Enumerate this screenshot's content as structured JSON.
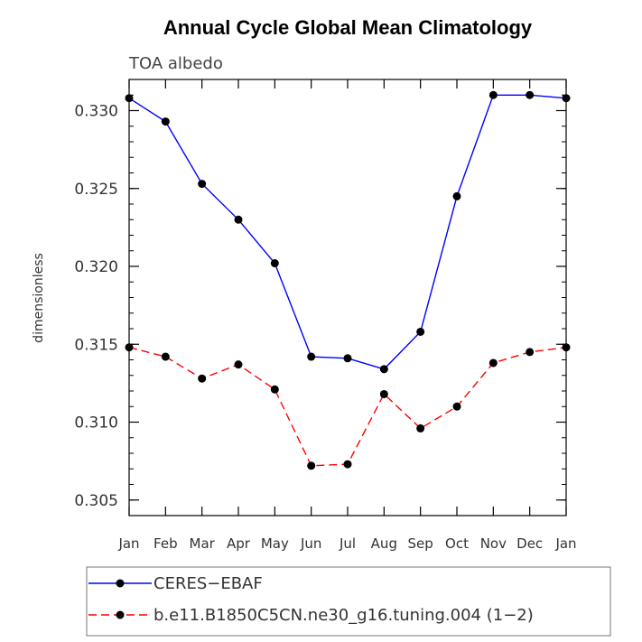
{
  "chart_data": {
    "type": "line",
    "title": "Annual Cycle Global Mean Climatology",
    "subtitle": "TOA albedo",
    "xlabel": "",
    "ylabel": "dimensionless",
    "categories": [
      "Jan",
      "Feb",
      "Mar",
      "Apr",
      "May",
      "Jun",
      "Jul",
      "Aug",
      "Sep",
      "Oct",
      "Nov",
      "Dec",
      "Jan"
    ],
    "ylim": [
      0.304,
      0.332
    ],
    "yticks": [
      0.305,
      0.31,
      0.315,
      0.32,
      0.325,
      0.33
    ],
    "ytick_labels": [
      "0.305",
      "0.310",
      "0.315",
      "0.320",
      "0.325",
      "0.330"
    ],
    "series": [
      {
        "name": "CERES−EBAF",
        "color": "#0000ff",
        "dash": "solid",
        "values": [
          0.3308,
          0.3293,
          0.3253,
          0.323,
          0.3202,
          0.3142,
          0.3141,
          0.3134,
          0.3158,
          0.3245,
          0.331,
          0.331,
          0.3308
        ]
      },
      {
        "name": "b.e11.B1850C5CN.ne30_g16.tuning.004 (1−2)",
        "color": "#ff0000",
        "dash": "dashed",
        "values": [
          0.3148,
          0.3142,
          0.3128,
          0.3137,
          0.3121,
          0.3072,
          0.3073,
          0.3118,
          0.3096,
          0.311,
          0.3138,
          0.3145,
          0.3148
        ]
      }
    ],
    "legend_position": "bottom"
  }
}
